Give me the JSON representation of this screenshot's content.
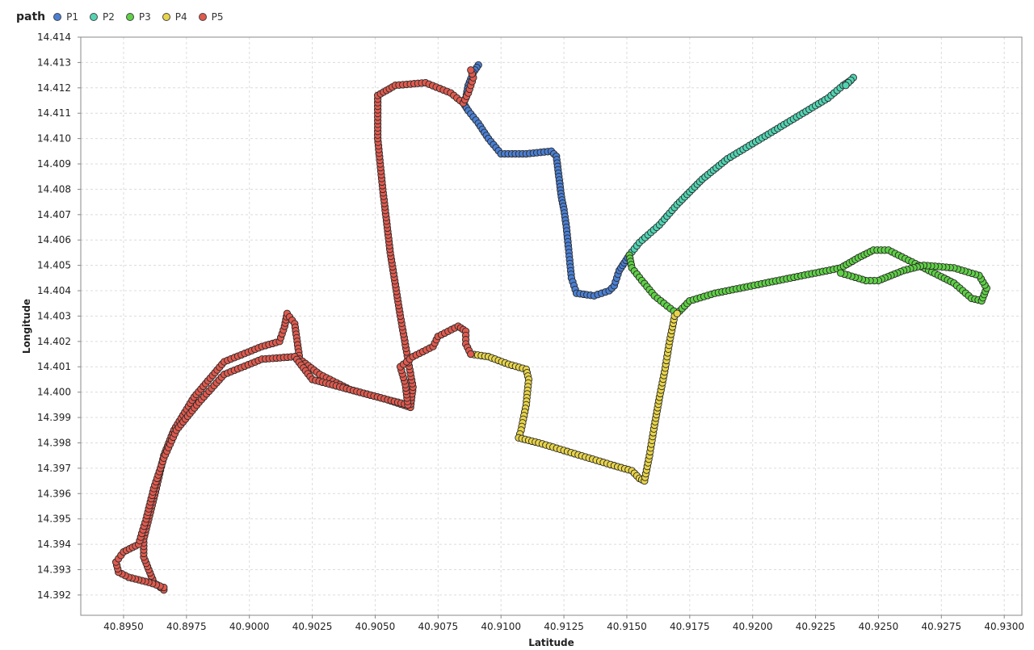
{
  "chart_data": {
    "type": "scatter",
    "legend_title": "path",
    "legend_position": "top-left",
    "xlabel": "Latitude",
    "ylabel": "Longitude",
    "xlim": [
      40.8933,
      40.9307
    ],
    "ylim": [
      14.3912,
      14.414
    ],
    "x_ticks": [
      "40.8950",
      "40.8975",
      "40.9000",
      "40.9025",
      "40.9050",
      "40.9075",
      "40.9100",
      "40.9125",
      "40.9150",
      "40.9175",
      "40.9200",
      "40.9225",
      "40.9250",
      "40.9275",
      "40.9300"
    ],
    "y_ticks": [
      "14.392",
      "14.393",
      "14.394",
      "14.395",
      "14.396",
      "14.397",
      "14.398",
      "14.399",
      "14.400",
      "14.401",
      "14.402",
      "14.403",
      "14.404",
      "14.405",
      "14.406",
      "14.407",
      "14.408",
      "14.409",
      "14.410",
      "14.411",
      "14.412",
      "14.413",
      "14.414"
    ],
    "grid": true,
    "series": [
      {
        "name": "P1",
        "color": "#4a7fd4",
        "points": [
          [
            40.9091,
            14.4129
          ],
          [
            40.9089,
            14.4126
          ],
          [
            40.9087,
            14.4121
          ],
          [
            40.9086,
            14.4116
          ],
          [
            40.9085,
            14.4114
          ],
          [
            40.9087,
            14.4111
          ],
          [
            40.9091,
            14.4106
          ],
          [
            40.9095,
            14.41
          ],
          [
            40.91,
            14.4094
          ],
          [
            40.911,
            14.4094
          ],
          [
            40.912,
            14.4095
          ],
          [
            40.9122,
            14.4093
          ],
          [
            40.9123,
            14.4085
          ],
          [
            40.9124,
            14.4077
          ],
          [
            40.9125,
            14.4072
          ],
          [
            40.9126,
            14.4065
          ],
          [
            40.9127,
            14.4055
          ],
          [
            40.9128,
            14.4045
          ],
          [
            40.913,
            14.4039
          ],
          [
            40.9137,
            14.4038
          ],
          [
            40.9143,
            14.404
          ],
          [
            40.9145,
            14.4042
          ],
          [
            40.9147,
            14.4048
          ],
          [
            40.9149,
            14.4051
          ],
          [
            40.9151,
            14.4054
          ]
        ]
      },
      {
        "name": "P2",
        "color": "#52d4b3",
        "points": [
          [
            40.9151,
            14.4054
          ],
          [
            40.9155,
            14.4059
          ],
          [
            40.9163,
            14.4066
          ],
          [
            40.917,
            14.4074
          ],
          [
            40.918,
            14.4084
          ],
          [
            40.919,
            14.4092
          ],
          [
            40.92,
            14.4098
          ],
          [
            40.921,
            14.4104
          ],
          [
            40.922,
            14.411
          ],
          [
            40.923,
            14.4116
          ],
          [
            40.9236,
            14.4121
          ],
          [
            40.9239,
            14.4123
          ],
          [
            40.924,
            14.4124
          ],
          [
            40.9237,
            14.4121
          ]
        ]
      },
      {
        "name": "P3",
        "color": "#5fd146",
        "points": [
          [
            40.9151,
            14.4054
          ],
          [
            40.9152,
            14.4049
          ],
          [
            40.9156,
            14.4044
          ],
          [
            40.9161,
            14.4038
          ],
          [
            40.9166,
            14.4034
          ],
          [
            40.917,
            14.4031
          ],
          [
            40.9175,
            14.4036
          ],
          [
            40.9185,
            14.4039
          ],
          [
            40.9195,
            14.4041
          ],
          [
            40.9205,
            14.4043
          ],
          [
            40.9215,
            14.4045
          ],
          [
            40.9225,
            14.4047
          ],
          [
            40.9235,
            14.4049
          ],
          [
            40.9242,
            14.4053
          ],
          [
            40.9248,
            14.4056
          ],
          [
            40.9254,
            14.4056
          ],
          [
            40.9262,
            14.4052
          ],
          [
            40.927,
            14.4048
          ],
          [
            40.928,
            14.4043
          ],
          [
            40.9287,
            14.4037
          ],
          [
            40.9291,
            14.4036
          ],
          [
            40.9293,
            14.4041
          ],
          [
            40.929,
            14.4046
          ],
          [
            40.928,
            14.4049
          ],
          [
            40.9268,
            14.405
          ],
          [
            40.926,
            14.4048
          ],
          [
            40.9255,
            14.4046
          ],
          [
            40.925,
            14.4044
          ],
          [
            40.9245,
            14.4044
          ],
          [
            40.9235,
            14.4047
          ]
        ]
      },
      {
        "name": "P4",
        "color": "#e8d44a",
        "points": [
          [
            40.9088,
            14.4015
          ],
          [
            40.9095,
            14.4014
          ],
          [
            40.9103,
            14.4011
          ],
          [
            40.911,
            14.4009
          ],
          [
            40.9111,
            14.4005
          ],
          [
            40.911,
            14.3995
          ],
          [
            40.9108,
            14.3985
          ],
          [
            40.9107,
            14.3982
          ],
          [
            40.9115,
            14.398
          ],
          [
            40.9125,
            14.3977
          ],
          [
            40.9135,
            14.3974
          ],
          [
            40.9145,
            14.3971
          ],
          [
            40.9152,
            14.3969
          ],
          [
            40.9155,
            14.3966
          ],
          [
            40.9157,
            14.3965
          ],
          [
            40.9159,
            14.3975
          ],
          [
            40.9161,
            14.3987
          ],
          [
            40.9163,
            14.3998
          ],
          [
            40.9165,
            14.4008
          ],
          [
            40.9167,
            14.402
          ],
          [
            40.9169,
            14.403
          ],
          [
            40.917,
            14.4031
          ]
        ]
      },
      {
        "name": "P5",
        "color": "#e05a4e",
        "points": [
          [
            40.8966,
            14.3922
          ],
          [
            40.8962,
            14.3925
          ],
          [
            40.896,
            14.393
          ],
          [
            40.8958,
            14.3935
          ],
          [
            40.8958,
            14.3942
          ],
          [
            40.896,
            14.395
          ],
          [
            40.8963,
            14.3962
          ],
          [
            40.8966,
            14.3975
          ],
          [
            40.897,
            14.3985
          ],
          [
            40.8978,
            14.3998
          ],
          [
            40.899,
            14.4012
          ],
          [
            40.9005,
            14.4018
          ],
          [
            40.9012,
            14.402
          ],
          [
            40.9014,
            14.4026
          ],
          [
            40.9015,
            14.4031
          ],
          [
            40.9018,
            14.4027
          ],
          [
            40.9019,
            14.402
          ],
          [
            40.902,
            14.4013
          ],
          [
            40.9028,
            14.4007
          ],
          [
            40.904,
            14.4001
          ],
          [
            40.9055,
            14.3997
          ],
          [
            40.9064,
            14.3994
          ],
          [
            40.9065,
            14.4002
          ],
          [
            40.9063,
            14.4013
          ],
          [
            40.906,
            14.403
          ],
          [
            40.9056,
            14.4055
          ],
          [
            40.9053,
            14.408
          ],
          [
            40.9051,
            14.41
          ],
          [
            40.9051,
            14.4117
          ],
          [
            40.9058,
            14.4121
          ],
          [
            40.907,
            14.4122
          ],
          [
            40.908,
            14.4118
          ],
          [
            40.9085,
            14.4114
          ],
          [
            40.9087,
            14.4118
          ],
          [
            40.9089,
            14.4124
          ],
          [
            40.9088,
            14.4127
          ]
        ]
      },
      {
        "name": "P5",
        "color": "#e05a4e",
        "points": [
          [
            40.8966,
            14.3923
          ],
          [
            40.896,
            14.3925
          ],
          [
            40.8952,
            14.3927
          ],
          [
            40.8948,
            14.3929
          ],
          [
            40.8947,
            14.3933
          ],
          [
            40.895,
            14.3937
          ],
          [
            40.8956,
            14.394
          ],
          [
            40.8959,
            14.395
          ],
          [
            40.8962,
            14.3962
          ],
          [
            40.8966,
            14.3974
          ],
          [
            40.8971,
            14.3985
          ],
          [
            40.898,
            14.3996
          ],
          [
            40.899,
            14.4007
          ],
          [
            40.9005,
            14.4013
          ],
          [
            40.9018,
            14.4014
          ],
          [
            40.9025,
            14.4005
          ],
          [
            40.904,
            14.4001
          ],
          [
            40.9055,
            14.3997
          ],
          [
            40.9063,
            14.3995
          ],
          [
            40.9062,
            14.4003
          ],
          [
            40.906,
            14.401
          ],
          [
            40.9065,
            14.4014
          ],
          [
            40.9073,
            14.4018
          ],
          [
            40.9075,
            14.4022
          ],
          [
            40.9083,
            14.4026
          ],
          [
            40.9086,
            14.4024
          ],
          [
            40.9086,
            14.4019
          ],
          [
            40.9088,
            14.4015
          ]
        ]
      }
    ]
  }
}
